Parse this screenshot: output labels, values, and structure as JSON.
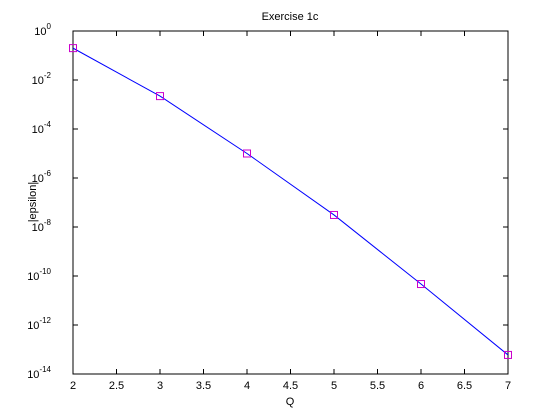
{
  "chart_data": {
    "type": "line",
    "title": "Exercise 1c",
    "xlabel": "Q",
    "ylabel": "|epsilon|",
    "x": [
      2,
      3,
      4,
      5,
      6,
      7
    ],
    "series": [
      {
        "color": "#0000ff",
        "marker_color": "#cc00cc",
        "marker": "square",
        "values": [
          0.2,
          0.0022,
          1e-05,
          3.1e-08,
          4.7e-11,
          6e-14
        ]
      }
    ],
    "xlim": [
      2,
      7
    ],
    "xticks": [
      2,
      2.5,
      3,
      3.5,
      4,
      4.5,
      5,
      5.5,
      6,
      6.5,
      7
    ],
    "ylim": [
      1e-14,
      1
    ],
    "ylog": true,
    "yticks": [
      {
        "value": 1e-14,
        "label": "10",
        "exponent": "-14"
      },
      {
        "value": 1e-12,
        "label": "10",
        "exponent": "-12"
      },
      {
        "value": 1e-10,
        "label": "10",
        "exponent": "-10"
      },
      {
        "value": 1e-08,
        "label": "10",
        "exponent": "-8"
      },
      {
        "value": 1e-06,
        "label": "10",
        "exponent": "-6"
      },
      {
        "value": 0.0001,
        "label": "10",
        "exponent": "-4"
      },
      {
        "value": 0.01,
        "label": "10",
        "exponent": "-2"
      },
      {
        "value": 1,
        "label": "10",
        "exponent": "0"
      }
    ],
    "grid": false
  }
}
